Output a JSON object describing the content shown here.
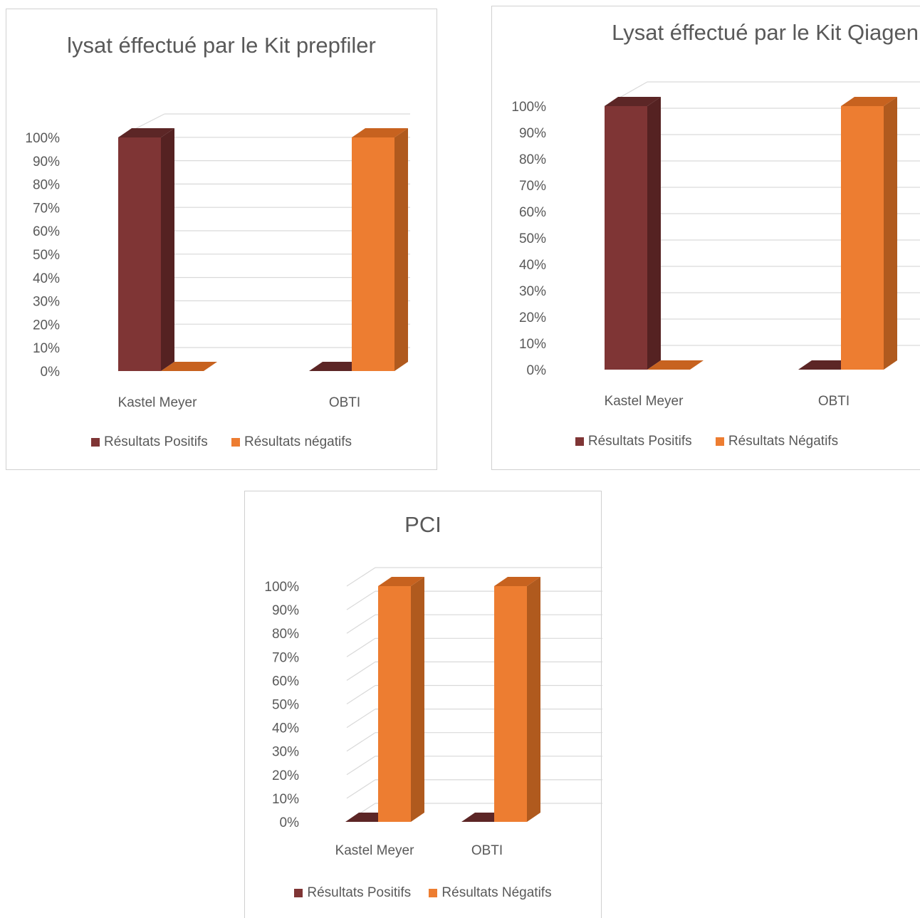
{
  "colors": {
    "positive": "#7f3535",
    "positive_side": "#552222",
    "positive_top": "#5c2626",
    "negative": "#ed7d31",
    "negative_side": "#b05a1e",
    "negative_top": "#c7621f",
    "grid": "#d9d9d9",
    "text": "#595959"
  },
  "chart_data": [
    {
      "type": "bar",
      "title": "lysat éffectué par le Kit prepfiler",
      "categories": [
        "Kastel Meyer",
        "OBTI"
      ],
      "yticks": [
        "0%",
        "10%",
        "20%",
        "30%",
        "40%",
        "50%",
        "60%",
        "70%",
        "80%",
        "90%",
        "100%"
      ],
      "ylim": [
        0,
        100
      ],
      "series": [
        {
          "name": "Résultats Positifs",
          "values": [
            100,
            0
          ]
        },
        {
          "name": "Résultats négatifs",
          "values": [
            0,
            100
          ]
        }
      ],
      "legend": "bottom",
      "grid": true
    },
    {
      "type": "bar",
      "title": "Lysat éffectué par le Kit Qiagen",
      "categories": [
        "Kastel Meyer",
        "OBTI"
      ],
      "yticks": [
        "0%",
        "10%",
        "20%",
        "30%",
        "40%",
        "50%",
        "60%",
        "70%",
        "80%",
        "90%",
        "100%"
      ],
      "ylim": [
        0,
        100
      ],
      "series": [
        {
          "name": "Résultats Positifs",
          "values": [
            100,
            0
          ]
        },
        {
          "name": "Résultats Négatifs",
          "values": [
            0,
            100
          ]
        }
      ],
      "legend": "bottom",
      "grid": true
    },
    {
      "type": "bar",
      "title": "PCI",
      "categories": [
        "Kastel Meyer",
        "OBTI"
      ],
      "yticks": [
        "0%",
        "10%",
        "20%",
        "30%",
        "40%",
        "50%",
        "60%",
        "70%",
        "80%",
        "90%",
        "100%"
      ],
      "ylim": [
        0,
        100
      ],
      "series": [
        {
          "name": "Résultats Positifs",
          "values": [
            0,
            0
          ]
        },
        {
          "name": "Résultats Négatifs",
          "values": [
            100,
            100
          ]
        }
      ],
      "legend": "bottom",
      "grid": true
    }
  ]
}
